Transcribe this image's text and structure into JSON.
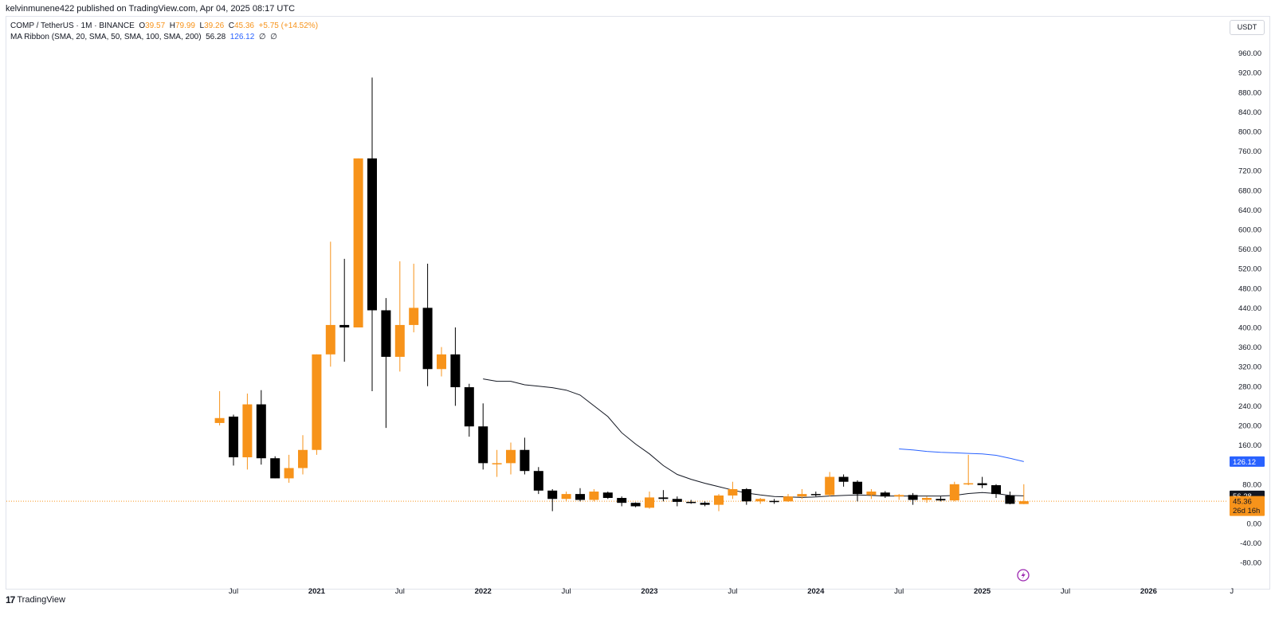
{
  "header": {
    "published_by": "kelvinmunene422 published on TradingView.com, Apr 04, 2025 08:17 UTC"
  },
  "legend": {
    "symbol": "COMP / TetherUS · 1M · BINANCE",
    "o_label": "O",
    "o_value": "39.57",
    "h_label": "H",
    "h_value": "79.99",
    "l_label": "L",
    "l_value": "39.26",
    "c_label": "C",
    "c_value": "45.36",
    "change": "+5.75 (+14.52%)",
    "ma_label": "MA Ribbon (SMA, 20, SMA, 50, SMA, 100, SMA, 200)",
    "ma_v1": "56.28",
    "ma_v2": "126.12",
    "ma_v3": "∅",
    "ma_v4": "∅"
  },
  "toolbar": {
    "currency": "USDT"
  },
  "footer": {
    "brand": "TradingView"
  },
  "price_labels": {
    "ma200": "126.12",
    "ma20": "56.28",
    "last_price": "45.36",
    "countdown": "26d 16h"
  },
  "colors": {
    "up": "#f7931a",
    "down": "#000000",
    "ma20": "#131722",
    "ma50": "#2962ff",
    "price_line": "#f7931a"
  },
  "chart_data": {
    "type": "candlestick",
    "title": "COMP / TetherUS · 1M · BINANCE",
    "y_ticks": [
      "-80.00",
      "-40.00",
      "0.00",
      "40.00",
      "80.00",
      "120.00",
      "160.00",
      "200.00",
      "240.00",
      "280.00",
      "320.00",
      "360.00",
      "400.00",
      "440.00",
      "480.00",
      "520.00",
      "560.00",
      "600.00",
      "640.00",
      "680.00",
      "720.00",
      "760.00",
      "800.00",
      "840.00",
      "880.00",
      "920.00",
      "960.00"
    ],
    "ylim": [
      -80,
      960
    ],
    "x_ticks": [
      {
        "label": "Jul",
        "month": "2020-07"
      },
      {
        "label": "2021",
        "month": "2021-01"
      },
      {
        "label": "Jul",
        "month": "2021-07"
      },
      {
        "label": "2022",
        "month": "2022-01"
      },
      {
        "label": "Jul",
        "month": "2022-07"
      },
      {
        "label": "2023",
        "month": "2023-01"
      },
      {
        "label": "Jul",
        "month": "2023-07"
      },
      {
        "label": "2024",
        "month": "2024-01"
      },
      {
        "label": "Jul",
        "month": "2024-07"
      },
      {
        "label": "2025",
        "month": "2025-01"
      },
      {
        "label": "Jul",
        "month": "2025-07"
      },
      {
        "label": "2026",
        "month": "2026-01"
      },
      {
        "label": "J",
        "month": "2026-07"
      }
    ],
    "candles": [
      {
        "month": "2020-06",
        "o": 205,
        "h": 270,
        "l": 200,
        "c": 215
      },
      {
        "month": "2020-07",
        "o": 218,
        "h": 222,
        "l": 118,
        "c": 135
      },
      {
        "month": "2020-08",
        "o": 135,
        "h": 265,
        "l": 110,
        "c": 243
      },
      {
        "month": "2020-09",
        "o": 243,
        "h": 272,
        "l": 120,
        "c": 133
      },
      {
        "month": "2020-10",
        "o": 133,
        "h": 137,
        "l": 92,
        "c": 92
      },
      {
        "month": "2020-11",
        "o": 92,
        "h": 140,
        "l": 83,
        "c": 113
      },
      {
        "month": "2020-12",
        "o": 113,
        "h": 180,
        "l": 100,
        "c": 150
      },
      {
        "month": "2021-01",
        "o": 150,
        "h": 345,
        "l": 140,
        "c": 345
      },
      {
        "month": "2021-02",
        "o": 345,
        "h": 575,
        "l": 320,
        "c": 405
      },
      {
        "month": "2021-03",
        "o": 405,
        "h": 540,
        "l": 330,
        "c": 400
      },
      {
        "month": "2021-04",
        "o": 400,
        "h": 745,
        "l": 400,
        "c": 745
      },
      {
        "month": "2021-05",
        "o": 745,
        "h": 910,
        "l": 270,
        "c": 435
      },
      {
        "month": "2021-06",
        "o": 435,
        "h": 460,
        "l": 195,
        "c": 340
      },
      {
        "month": "2021-07",
        "o": 340,
        "h": 535,
        "l": 310,
        "c": 405
      },
      {
        "month": "2021-08",
        "o": 405,
        "h": 530,
        "l": 390,
        "c": 440
      },
      {
        "month": "2021-09",
        "o": 440,
        "h": 530,
        "l": 280,
        "c": 315
      },
      {
        "month": "2021-10",
        "o": 315,
        "h": 360,
        "l": 300,
        "c": 345
      },
      {
        "month": "2021-11",
        "o": 345,
        "h": 400,
        "l": 240,
        "c": 278
      },
      {
        "month": "2021-12",
        "o": 278,
        "h": 285,
        "l": 177,
        "c": 198
      },
      {
        "month": "2022-01",
        "o": 198,
        "h": 245,
        "l": 110,
        "c": 123
      },
      {
        "month": "2022-02",
        "o": 123,
        "h": 150,
        "l": 95,
        "c": 123
      },
      {
        "month": "2022-03",
        "o": 123,
        "h": 165,
        "l": 100,
        "c": 150
      },
      {
        "month": "2022-04",
        "o": 150,
        "h": 175,
        "l": 100,
        "c": 107
      },
      {
        "month": "2022-05",
        "o": 107,
        "h": 115,
        "l": 60,
        "c": 67
      },
      {
        "month": "2022-06",
        "o": 67,
        "h": 70,
        "l": 25,
        "c": 50
      },
      {
        "month": "2022-07",
        "o": 50,
        "h": 65,
        "l": 45,
        "c": 60
      },
      {
        "month": "2022-08",
        "o": 60,
        "h": 72,
        "l": 45,
        "c": 48
      },
      {
        "month": "2022-09",
        "o": 48,
        "h": 70,
        "l": 45,
        "c": 65
      },
      {
        "month": "2022-10",
        "o": 63,
        "h": 65,
        "l": 50,
        "c": 52
      },
      {
        "month": "2022-11",
        "o": 52,
        "h": 55,
        "l": 35,
        "c": 42
      },
      {
        "month": "2022-12",
        "o": 42,
        "h": 43,
        "l": 33,
        "c": 35
      },
      {
        "month": "2023-01",
        "o": 32,
        "h": 65,
        "l": 30,
        "c": 53
      },
      {
        "month": "2023-02",
        "o": 53,
        "h": 68,
        "l": 45,
        "c": 50
      },
      {
        "month": "2023-03",
        "o": 50,
        "h": 55,
        "l": 35,
        "c": 44
      },
      {
        "month": "2023-04",
        "o": 44,
        "h": 48,
        "l": 40,
        "c": 42
      },
      {
        "month": "2023-05",
        "o": 42,
        "h": 45,
        "l": 35,
        "c": 38
      },
      {
        "month": "2023-06",
        "o": 38,
        "h": 60,
        "l": 25,
        "c": 57
      },
      {
        "month": "2023-07",
        "o": 57,
        "h": 85,
        "l": 50,
        "c": 70
      },
      {
        "month": "2023-08",
        "o": 70,
        "h": 72,
        "l": 38,
        "c": 45
      },
      {
        "month": "2023-09",
        "o": 45,
        "h": 52,
        "l": 40,
        "c": 50
      },
      {
        "month": "2023-10",
        "o": 46,
        "h": 50,
        "l": 40,
        "c": 45
      },
      {
        "month": "2023-11",
        "o": 45,
        "h": 60,
        "l": 44,
        "c": 55
      },
      {
        "month": "2023-12",
        "o": 55,
        "h": 70,
        "l": 50,
        "c": 60
      },
      {
        "month": "2024-01",
        "o": 60,
        "h": 65,
        "l": 55,
        "c": 58
      },
      {
        "month": "2024-02",
        "o": 58,
        "h": 105,
        "l": 55,
        "c": 95
      },
      {
        "month": "2024-03",
        "o": 95,
        "h": 100,
        "l": 75,
        "c": 85
      },
      {
        "month": "2024-04",
        "o": 85,
        "h": 88,
        "l": 45,
        "c": 60
      },
      {
        "month": "2024-05",
        "o": 58,
        "h": 70,
        "l": 50,
        "c": 65
      },
      {
        "month": "2024-06",
        "o": 63,
        "h": 66,
        "l": 52,
        "c": 55
      },
      {
        "month": "2024-07",
        "o": 55,
        "h": 60,
        "l": 48,
        "c": 58
      },
      {
        "month": "2024-08",
        "o": 58,
        "h": 62,
        "l": 38,
        "c": 48
      },
      {
        "month": "2024-09",
        "o": 48,
        "h": 55,
        "l": 42,
        "c": 52
      },
      {
        "month": "2024-10",
        "o": 50,
        "h": 55,
        "l": 45,
        "c": 47
      },
      {
        "month": "2024-11",
        "o": 47,
        "h": 85,
        "l": 45,
        "c": 80
      },
      {
        "month": "2024-12",
        "o": 80,
        "h": 140,
        "l": 78,
        "c": 82
      },
      {
        "month": "2025-01",
        "o": 82,
        "h": 95,
        "l": 72,
        "c": 78
      },
      {
        "month": "2025-02",
        "o": 78,
        "h": 80,
        "l": 52,
        "c": 60
      },
      {
        "month": "2025-03",
        "o": 57,
        "h": 65,
        "l": 39,
        "c": 40
      },
      {
        "month": "2025-04",
        "o": 39.57,
        "h": 79.99,
        "l": 39.26,
        "c": 45.36
      }
    ],
    "series": [
      {
        "name": "SMA 20",
        "values": [
          {
            "month": "2022-01",
            "v": 295
          },
          {
            "month": "2022-02",
            "v": 290
          },
          {
            "month": "2022-03",
            "v": 290
          },
          {
            "month": "2022-04",
            "v": 283
          },
          {
            "month": "2022-05",
            "v": 280
          },
          {
            "month": "2022-06",
            "v": 277
          },
          {
            "month": "2022-07",
            "v": 272
          },
          {
            "month": "2022-08",
            "v": 262
          },
          {
            "month": "2022-09",
            "v": 240
          },
          {
            "month": "2022-10",
            "v": 218
          },
          {
            "month": "2022-11",
            "v": 185
          },
          {
            "month": "2022-12",
            "v": 162
          },
          {
            "month": "2023-01",
            "v": 142
          },
          {
            "month": "2023-02",
            "v": 118
          },
          {
            "month": "2023-03",
            "v": 100
          },
          {
            "month": "2023-04",
            "v": 90
          },
          {
            "month": "2023-05",
            "v": 82
          },
          {
            "month": "2023-06",
            "v": 75
          },
          {
            "month": "2023-07",
            "v": 68
          },
          {
            "month": "2023-08",
            "v": 62
          },
          {
            "month": "2023-09",
            "v": 58
          },
          {
            "month": "2023-10",
            "v": 55
          },
          {
            "month": "2023-11",
            "v": 54
          },
          {
            "month": "2023-12",
            "v": 53
          },
          {
            "month": "2024-01",
            "v": 54
          },
          {
            "month": "2024-02",
            "v": 56
          },
          {
            "month": "2024-03",
            "v": 57
          },
          {
            "month": "2024-04",
            "v": 58
          },
          {
            "month": "2024-05",
            "v": 57
          },
          {
            "month": "2024-06",
            "v": 56
          },
          {
            "month": "2024-07",
            "v": 56
          },
          {
            "month": "2024-08",
            "v": 56
          },
          {
            "month": "2024-09",
            "v": 56
          },
          {
            "month": "2024-10",
            "v": 56
          },
          {
            "month": "2024-11",
            "v": 57
          },
          {
            "month": "2024-12",
            "v": 61
          },
          {
            "month": "2025-01",
            "v": 63
          },
          {
            "month": "2025-02",
            "v": 61
          },
          {
            "month": "2025-03",
            "v": 57
          },
          {
            "month": "2025-04",
            "v": 56.28
          }
        ]
      },
      {
        "name": "SMA 50",
        "values": [
          {
            "month": "2024-07",
            "v": 152
          },
          {
            "month": "2024-08",
            "v": 150
          },
          {
            "month": "2024-09",
            "v": 147
          },
          {
            "month": "2024-10",
            "v": 145
          },
          {
            "month": "2024-11",
            "v": 144
          },
          {
            "month": "2024-12",
            "v": 143
          },
          {
            "month": "2025-01",
            "v": 142
          },
          {
            "month": "2025-02",
            "v": 139
          },
          {
            "month": "2025-03",
            "v": 133
          },
          {
            "month": "2025-04",
            "v": 126.12
          }
        ]
      }
    ],
    "last_price": 45.36
  }
}
